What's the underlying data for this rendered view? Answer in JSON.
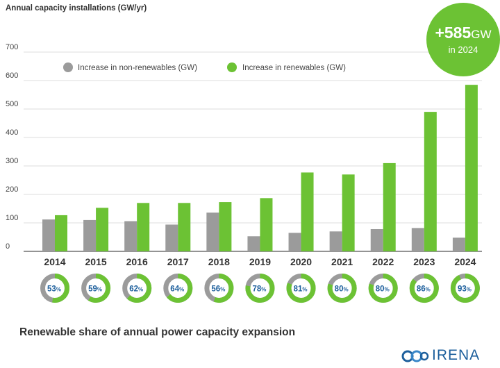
{
  "chart_data": {
    "type": "bar",
    "ylabel": "Annual capacity installations (GW/yr)",
    "ylim": [
      0,
      700
    ],
    "yticks": [
      0,
      100,
      200,
      300,
      400,
      500,
      600,
      700
    ],
    "grid": true,
    "legend_position": "top-left",
    "categories": [
      "2014",
      "2015",
      "2016",
      "2017",
      "2018",
      "2019",
      "2020",
      "2021",
      "2022",
      "2023",
      "2024"
    ],
    "series": [
      {
        "name": "Increase in non-renewables (GW)",
        "color": "#9b9b9b",
        "values": [
          112,
          110,
          106,
          94,
          136,
          53,
          65,
          70,
          78,
          82,
          48
        ]
      },
      {
        "name": "Increase in renewables (GW)",
        "color": "#6cc234",
        "values": [
          127,
          153,
          170,
          170,
          173,
          187,
          277,
          270,
          310,
          490,
          585
        ]
      }
    ],
    "renewable_share": {
      "title": "Renewable share of annual power capacity expansion",
      "values": [
        53,
        59,
        62,
        64,
        56,
        78,
        81,
        80,
        80,
        86,
        93
      ],
      "unit": "%",
      "ring_color": "#6cc234",
      "rest_color": "#9b9b9b",
      "text_color": "#1d5f9c"
    },
    "annotation": {
      "value": "+585",
      "unit": "GW",
      "subtitle": "in 2024",
      "color": "#6cc234"
    }
  },
  "logo": {
    "text": "IRENA",
    "icon": "irena-globe-icon"
  }
}
